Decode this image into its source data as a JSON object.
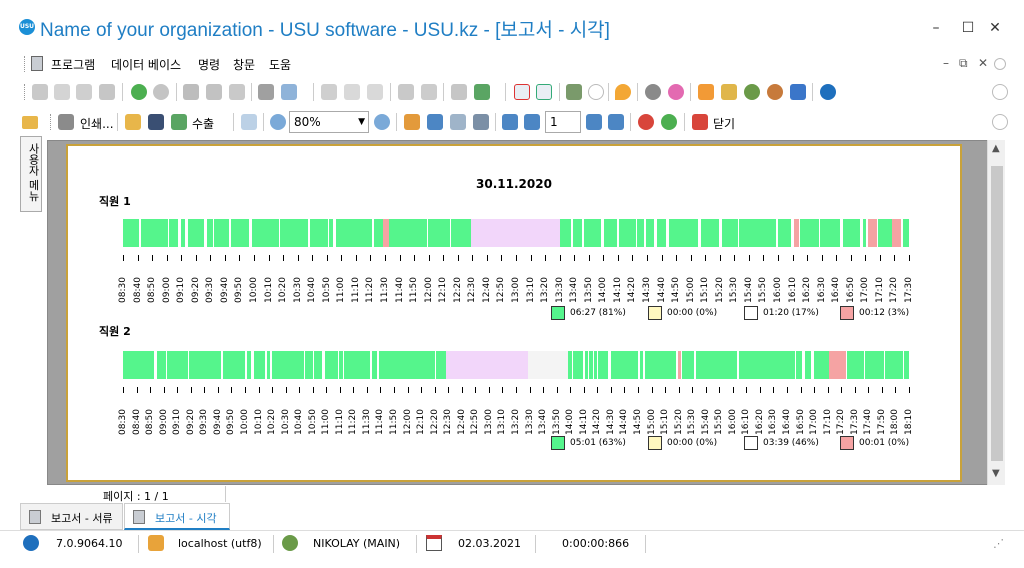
{
  "window": {
    "title": "Name of your organization - USU software - USU.kz - [보고서 - 시각]",
    "logo_text": "USU",
    "controls": {
      "minimize": "–",
      "maximize": "☐",
      "close": "✕"
    }
  },
  "menu": {
    "items": [
      "프로그램",
      "데이터 베이스",
      "명령",
      "창문",
      "도움"
    ],
    "mdi": [
      "–",
      "⧉",
      "✕"
    ]
  },
  "report_toolbar": {
    "print_label": "인쇄...",
    "export_label": "수출",
    "zoom_value": "80%",
    "page_value": "1",
    "close_label": "닫기"
  },
  "side_panel": {
    "tab_label": "사용자 메뉴"
  },
  "report": {
    "date": "30.11.2020",
    "employees": [
      {
        "name": "직원 1",
        "time_labels": [
          "08:30",
          "08:40",
          "08:50",
          "09:00",
          "09:10",
          "09:20",
          "09:30",
          "09:40",
          "09:50",
          "10:00",
          "10:10",
          "10:20",
          "10:30",
          "10:40",
          "10:50",
          "11:00",
          "11:10",
          "11:20",
          "11:30",
          "11:40",
          "11:50",
          "12:00",
          "12:10",
          "12:20",
          "12:30",
          "12:40",
          "12:50",
          "13:00",
          "13:10",
          "13:20",
          "13:30",
          "13:40",
          "13:50",
          "14:00",
          "14:10",
          "14:20",
          "14:30",
          "14:40",
          "14:50",
          "15:00",
          "15:10",
          "15:20",
          "15:30",
          "15:40",
          "15:50",
          "16:00",
          "16:10",
          "16:20",
          "16:30",
          "16:40",
          "16:50",
          "17:00",
          "17:10",
          "17:20",
          "17:30"
        ],
        "legend": [
          "06:27 (81%)",
          "00:00 (0%)",
          "01:20 (17%)",
          "00:12 (3%)"
        ]
      },
      {
        "name": "직원 2",
        "time_labels": [
          "08:30",
          "08:40",
          "08:50",
          "09:00",
          "09:10",
          "09:20",
          "09:30",
          "09:40",
          "09:50",
          "10:00",
          "10:10",
          "10:20",
          "10:30",
          "10:40",
          "10:50",
          "11:00",
          "11:10",
          "11:20",
          "11:30",
          "11:40",
          "11:50",
          "12:00",
          "12:10",
          "12:20",
          "12:30",
          "12:40",
          "12:50",
          "13:00",
          "13:10",
          "13:20",
          "13:30",
          "13:40",
          "13:50",
          "14:00",
          "14:10",
          "14:20",
          "14:30",
          "14:40",
          "14:50",
          "15:00",
          "15:10",
          "15:20",
          "15:30",
          "15:40",
          "15:50",
          "16:00",
          "16:10",
          "16:20",
          "16:30",
          "16:40",
          "16:50",
          "17:00",
          "17:10",
          "17:20",
          "17:30",
          "17:40",
          "17:50",
          "18:00",
          "18:10"
        ],
        "legend": [
          "05:01 (63%)",
          "00:00 (0%)",
          "03:39 (46%)",
          "00:01 (0%)"
        ]
      }
    ],
    "legend_colors": [
      "#55f58c",
      "#fff8c0",
      "#ffffff",
      "#f5a3a3"
    ],
    "activity_colors": {
      "active": "#55f58c",
      "idle": "#f2d6fa",
      "absent": "#f4f4f4",
      "violation": "#f5a3a3"
    },
    "page_counter": "페이지 : 1 / 1"
  },
  "tabs": [
    {
      "label": "보고서 - 서류",
      "active": false
    },
    {
      "label": "보고서 - 시각",
      "active": true
    }
  ],
  "status": {
    "version": "7.0.9064.10",
    "database": "localhost (utf8)",
    "user": "NIKOLAY (MAIN)",
    "date": "02.03.2021",
    "timer": "0:00:00:866"
  }
}
